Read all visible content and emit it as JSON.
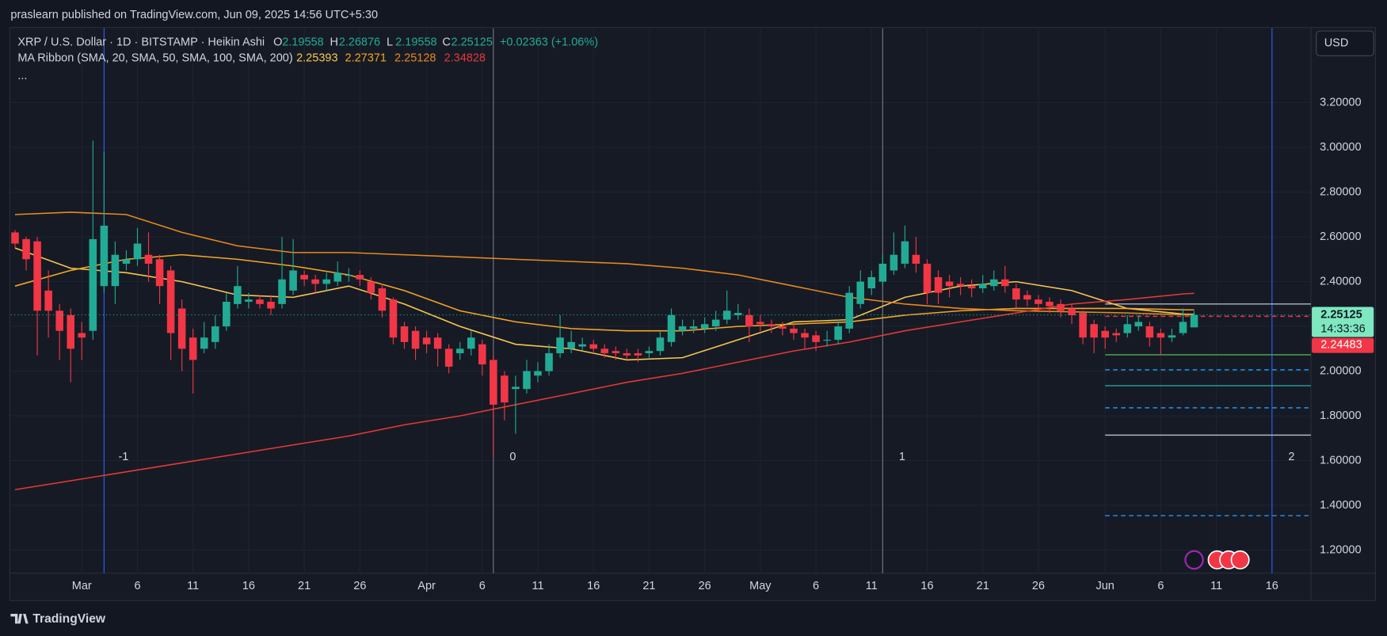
{
  "header": {
    "publisher": "praslearn published on TradingView.com, Jun 09, 2025 14:56 UTC+5:30",
    "footer": "TradingView",
    "currency_button": "USD"
  },
  "chart_data": {
    "type": "candlestick",
    "title": "XRP / U.S. Dollar · 1D · BITSTAMP · Heikin Ashi",
    "ohlc_labels": [
      "O",
      "H",
      "L",
      "C"
    ],
    "change": "+0.02363 (+1.06%)",
    "indicator": "MA Ribbon (SMA, 20, SMA, 50, SMA, 100, SMA, 200)",
    "more": "...",
    "countdown": "14:33:36",
    "up_color": "#22ab94",
    "down_color": "#f23645",
    "grid": true,
    "x": [
      54,
      55,
      56,
      57,
      58,
      59,
      60,
      61,
      62,
      63,
      64,
      65,
      66,
      67,
      68,
      69,
      70,
      71,
      72,
      73,
      74,
      75,
      76,
      77,
      78,
      79,
      80,
      81,
      82,
      83,
      84,
      85,
      86,
      87,
      88,
      89,
      90,
      91,
      92,
      93,
      94,
      95,
      96,
      97,
      98,
      99,
      100,
      101,
      102,
      103,
      104,
      105,
      106,
      107,
      108,
      109,
      110,
      111,
      112,
      113,
      114,
      115,
      116,
      117,
      118,
      119,
      120,
      121,
      122,
      123,
      124,
      125,
      126,
      127,
      128,
      129,
      130,
      131,
      132,
      133,
      134,
      135,
      136,
      137,
      138,
      139,
      140,
      141,
      142,
      143,
      144,
      145,
      146,
      147,
      148,
      149,
      150,
      151,
      152,
      153,
      154,
      155,
      156,
      157,
      158,
      159,
      160
    ],
    "open": [
      2.62,
      2.59,
      2.58,
      2.36,
      2.27,
      2.25,
      2.17,
      2.18,
      2.38,
      2.38,
      2.48,
      2.5,
      2.52,
      2.5,
      2.45,
      2.28,
      2.15,
      2.1,
      2.13,
      2.2,
      2.3,
      2.31,
      2.32,
      2.31,
      2.3,
      2.36,
      2.43,
      2.41,
      2.39,
      2.4,
      2.43,
      2.43,
      2.4,
      2.37,
      2.32,
      2.2,
      2.18,
      2.15,
      2.15,
      2.1,
      2.08,
      2.1,
      2.12,
      2.05,
      1.98,
      1.92,
      1.92,
      1.98,
      2.0,
      2.08,
      2.1,
      2.11,
      2.12,
      2.1,
      2.09,
      2.08,
      2.08,
      2.08,
      2.09,
      2.13,
      2.18,
      2.19,
      2.19,
      2.2,
      2.23,
      2.25,
      2.25,
      2.22,
      2.21,
      2.2,
      2.19,
      2.17,
      2.16,
      2.14,
      2.14,
      2.19,
      2.3,
      2.37,
      2.4,
      2.45,
      2.48,
      2.52,
      2.48,
      2.42,
      2.4,
      2.39,
      2.38,
      2.37,
      2.38,
      2.41,
      2.37,
      2.34,
      2.32,
      2.31,
      2.3,
      2.28,
      2.26,
      2.21,
      2.18,
      2.17,
      2.17,
      2.2,
      2.2,
      2.17,
      2.15,
      2.17,
      2.19558
    ],
    "high": [
      2.63,
      2.6,
      2.6,
      2.45,
      2.3,
      2.28,
      2.22,
      3.03,
      2.98,
      2.58,
      2.54,
      2.64,
      2.62,
      2.52,
      2.47,
      2.32,
      2.19,
      2.22,
      2.25,
      2.35,
      2.47,
      2.35,
      2.34,
      2.34,
      2.6,
      2.59,
      2.45,
      2.43,
      2.44,
      2.49,
      2.46,
      2.45,
      2.42,
      2.39,
      2.33,
      2.22,
      2.2,
      2.18,
      2.17,
      2.12,
      2.13,
      2.18,
      2.14,
      2.07,
      2.0,
      1.98,
      2.05,
      2.04,
      2.12,
      2.25,
      2.18,
      2.15,
      2.14,
      2.12,
      2.11,
      2.1,
      2.1,
      2.11,
      2.18,
      2.28,
      2.23,
      2.23,
      2.24,
      2.27,
      2.36,
      2.3,
      2.28,
      2.25,
      2.23,
      2.22,
      2.21,
      2.19,
      2.18,
      2.18,
      2.23,
      2.38,
      2.45,
      2.45,
      2.52,
      2.62,
      2.65,
      2.6,
      2.5,
      2.45,
      2.43,
      2.42,
      2.41,
      2.43,
      2.45,
      2.47,
      2.39,
      2.36,
      2.34,
      2.33,
      2.32,
      2.3,
      2.27,
      2.23,
      2.2,
      2.19,
      2.25,
      2.25,
      2.22,
      2.19,
      2.19,
      2.28,
      2.26876
    ],
    "low": [
      2.55,
      2.45,
      2.07,
      2.15,
      2.05,
      1.95,
      2.05,
      2.14,
      2.35,
      2.3,
      2.45,
      2.47,
      2.4,
      2.3,
      2.05,
      2.0,
      1.9,
      2.08,
      2.1,
      2.18,
      2.28,
      2.28,
      2.28,
      2.25,
      2.28,
      2.34,
      2.38,
      2.35,
      2.36,
      2.38,
      2.4,
      2.38,
      2.32,
      2.24,
      2.12,
      2.1,
      2.05,
      2.08,
      2.02,
      1.99,
      2.05,
      2.07,
      1.98,
      1.62,
      1.78,
      1.72,
      1.9,
      1.95,
      1.98,
      2.06,
      2.08,
      2.09,
      2.08,
      2.06,
      2.05,
      2.05,
      2.04,
      2.06,
      2.07,
      2.11,
      2.16,
      2.17,
      2.17,
      2.18,
      2.21,
      2.23,
      2.13,
      2.18,
      2.17,
      2.16,
      2.14,
      2.1,
      2.09,
      2.11,
      2.12,
      2.17,
      2.28,
      2.34,
      2.38,
      2.43,
      2.46,
      2.44,
      2.3,
      2.3,
      2.33,
      2.34,
      2.33,
      2.35,
      2.36,
      2.35,
      2.28,
      2.29,
      2.27,
      2.26,
      2.24,
      2.21,
      2.12,
      2.08,
      2.1,
      2.13,
      2.15,
      2.18,
      2.11,
      2.07,
      2.13,
      2.16,
      2.19558
    ],
    "close": [
      2.57,
      2.5,
      2.27,
      2.27,
      2.18,
      2.1,
      2.15,
      2.59,
      2.65,
      2.52,
      2.5,
      2.57,
      2.48,
      2.38,
      2.17,
      2.1,
      2.05,
      2.15,
      2.2,
      2.31,
      2.38,
      2.32,
      2.3,
      2.28,
      2.41,
      2.45,
      2.41,
      2.39,
      2.41,
      2.44,
      2.43,
      2.41,
      2.35,
      2.27,
      2.15,
      2.13,
      2.1,
      2.12,
      2.1,
      2.02,
      2.1,
      2.15,
      2.03,
      1.85,
      1.86,
      1.93,
      2.0,
      2.0,
      2.08,
      2.15,
      2.13,
      2.12,
      2.1,
      2.08,
      2.08,
      2.07,
      2.07,
      2.09,
      2.15,
      2.25,
      2.2,
      2.2,
      2.21,
      2.23,
      2.27,
      2.26,
      2.2,
      2.21,
      2.2,
      2.19,
      2.17,
      2.15,
      2.13,
      2.14,
      2.2,
      2.35,
      2.4,
      2.42,
      2.48,
      2.52,
      2.58,
      2.48,
      2.35,
      2.35,
      2.38,
      2.38,
      2.37,
      2.39,
      2.41,
      2.38,
      2.32,
      2.32,
      2.3,
      2.29,
      2.27,
      2.25,
      2.15,
      2.15,
      2.15,
      2.16,
      2.21,
      2.22,
      2.15,
      2.15,
      2.16,
      2.22,
      2.25125
    ],
    "ma_x": [
      54,
      59,
      64,
      69,
      74,
      79,
      84,
      89,
      94,
      99,
      104,
      109,
      114,
      119,
      124,
      129,
      134,
      139,
      144,
      149,
      154,
      159,
      160
    ],
    "ma_lines": [
      {
        "color": "#f9c74f",
        "values": [
          2.55,
          2.46,
          2.44,
          2.4,
          2.34,
          2.33,
          2.38,
          2.3,
          2.2,
          2.12,
          2.1,
          2.05,
          2.06,
          2.14,
          2.22,
          2.23,
          2.33,
          2.38,
          2.4,
          2.36,
          2.28,
          2.255,
          2.25393
        ]
      },
      {
        "color": "#f5a623",
        "values": [
          2.38,
          2.45,
          2.5,
          2.52,
          2.5,
          2.47,
          2.43,
          2.36,
          2.27,
          2.22,
          2.19,
          2.18,
          2.18,
          2.2,
          2.21,
          2.22,
          2.25,
          2.27,
          2.28,
          2.28,
          2.28,
          2.274,
          2.27371
        ]
      },
      {
        "color": "#e8891d",
        "values": [
          2.7,
          2.71,
          2.7,
          2.62,
          2.56,
          2.53,
          2.53,
          2.52,
          2.51,
          2.5,
          2.49,
          2.48,
          2.46,
          2.43,
          2.38,
          2.33,
          2.3,
          2.28,
          2.27,
          2.265,
          2.26,
          2.252,
          2.25128
        ]
      },
      {
        "color": "#e53935",
        "values": [
          1.47,
          1.51,
          1.55,
          1.59,
          1.63,
          1.67,
          1.71,
          1.76,
          1.8,
          1.85,
          1.9,
          1.95,
          1.99,
          2.04,
          2.09,
          2.13,
          2.18,
          2.22,
          2.26,
          2.3,
          2.32,
          2.345,
          2.34828
        ]
      }
    ],
    "levels": [
      {
        "value": 2.3,
        "from": 152,
        "color": "#b2b5be",
        "dashed": false
      },
      {
        "value": 2.24483,
        "from": 152,
        "color": "#f23645",
        "dashed": true
      },
      {
        "value": 2.073,
        "from": 152,
        "color": "#4caf50",
        "dashed": false
      },
      {
        "value": 2.006,
        "from": 152,
        "color": "#2196f3",
        "dashed": true
      },
      {
        "value": 1.935,
        "from": 152,
        "color": "#26a69a",
        "dashed": false
      },
      {
        "value": 1.836,
        "from": 152,
        "color": "#2196f3",
        "dashed": true
      },
      {
        "value": 1.714,
        "from": 152,
        "color": "#b2b5be",
        "dashed": false
      },
      {
        "value": 1.354,
        "from": 152,
        "color": "#2196f3",
        "dashed": true
      }
    ],
    "time_zones": {
      "x": [
        62,
        97,
        132,
        167
      ],
      "labels": [
        -1,
        0,
        1,
        2
      ],
      "colors": [
        "#2962ff",
        "#787b86",
        "#787b86",
        "#2962ff"
      ]
    },
    "xlim": [
      53.6,
      170.5
    ],
    "ylim": [
      1.097,
      3.532
    ],
    "xticks": [
      {
        "value": 60,
        "label": "Mar"
      },
      {
        "value": 65,
        "label": "6"
      },
      {
        "value": 70,
        "label": "11"
      },
      {
        "value": 75,
        "label": "16"
      },
      {
        "value": 80,
        "label": "21"
      },
      {
        "value": 85,
        "label": "26"
      },
      {
        "value": 91,
        "label": "Apr"
      },
      {
        "value": 96,
        "label": "6"
      },
      {
        "value": 101,
        "label": "11"
      },
      {
        "value": 106,
        "label": "16"
      },
      {
        "value": 111,
        "label": "21"
      },
      {
        "value": 116,
        "label": "26"
      },
      {
        "value": 121,
        "label": "May"
      },
      {
        "value": 126,
        "label": "6"
      },
      {
        "value": 131,
        "label": "11"
      },
      {
        "value": 136,
        "label": "16"
      },
      {
        "value": 141,
        "label": "21"
      },
      {
        "value": 146,
        "label": "26"
      },
      {
        "value": 152,
        "label": "Jun"
      },
      {
        "value": 157,
        "label": "6"
      },
      {
        "value": 162,
        "label": "11"
      },
      {
        "value": 167,
        "label": "16"
      }
    ],
    "yticks": [
      {
        "value": 1.2,
        "label": "1.20000"
      },
      {
        "value": 1.4,
        "label": "1.40000"
      },
      {
        "value": 1.6,
        "label": "1.60000"
      },
      {
        "value": 1.8,
        "label": "1.80000"
      },
      {
        "value": 2.0,
        "label": "2.00000"
      },
      {
        "value": 2.2,
        "label": "2.20000"
      },
      {
        "value": 2.4,
        "label": "2.40000"
      },
      {
        "value": 2.6,
        "label": "2.60000"
      },
      {
        "value": 2.8,
        "label": "2.80000"
      },
      {
        "value": 3.0,
        "label": "3.00000"
      },
      {
        "value": 3.2,
        "label": "3.20000"
      }
    ]
  }
}
